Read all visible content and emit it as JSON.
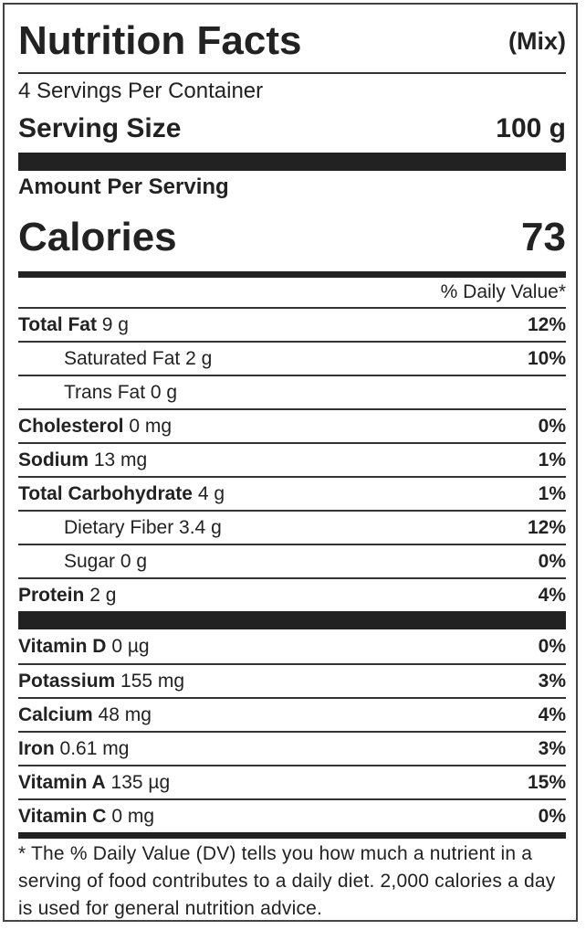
{
  "title": "Nutrition Facts",
  "variant": "(Mix)",
  "servings": "4 Servings Per Container",
  "serving_size": {
    "label": "Serving Size",
    "value": "100 g"
  },
  "amount_per_serving": "Amount Per Serving",
  "calories": {
    "label": "Calories",
    "value": "73"
  },
  "daily_value_header": "% Daily Value*",
  "nutrients": [
    {
      "name": "Total Fat",
      "amount": "9 g",
      "dv": "12%",
      "bold": true,
      "indent": false
    },
    {
      "name": "Saturated Fat",
      "amount": "2 g",
      "dv": "10%",
      "bold": false,
      "indent": true
    },
    {
      "name": "Trans Fat",
      "amount": "0 g",
      "dv": null,
      "bold": false,
      "indent": true
    },
    {
      "name": "Cholesterol",
      "amount": "0 mg",
      "dv": "0%",
      "bold": true,
      "indent": false
    },
    {
      "name": "Sodium",
      "amount": "13 mg",
      "dv": "1%",
      "bold": true,
      "indent": false
    },
    {
      "name": "Total Carbohydrate",
      "amount": "4 g",
      "dv": "1%",
      "bold": true,
      "indent": false
    },
    {
      "name": "Dietary Fiber",
      "amount": "3.4 g",
      "dv": "12%",
      "bold": false,
      "indent": true
    },
    {
      "name": "Sugar",
      "amount": "0 g",
      "dv": "0%",
      "bold": false,
      "indent": true
    },
    {
      "name": "Protein",
      "amount": "2 g",
      "dv": "4%",
      "bold": true,
      "indent": false
    }
  ],
  "vitamins": [
    {
      "name": "Vitamin D",
      "amount": "0 µg",
      "dv": "0%",
      "bold": true,
      "indent": false
    },
    {
      "name": "Potassium",
      "amount": "155 mg",
      "dv": "3%",
      "bold": true,
      "indent": false
    },
    {
      "name": "Calcium",
      "amount": "48 mg",
      "dv": "4%",
      "bold": true,
      "indent": false
    },
    {
      "name": "Iron",
      "amount": "0.61 mg",
      "dv": "3%",
      "bold": true,
      "indent": false
    },
    {
      "name": "Vitamin A",
      "amount": "135 µg",
      "dv": "15%",
      "bold": true,
      "indent": false
    },
    {
      "name": "Vitamin C",
      "amount": "0 mg",
      "dv": "0%",
      "bold": true,
      "indent": false
    }
  ],
  "footnote": "* The % Daily Value (DV) tells you how much a nutrient in a serving of food contributes to a daily diet. 2,000 calories a day is used for general nutrition advice."
}
